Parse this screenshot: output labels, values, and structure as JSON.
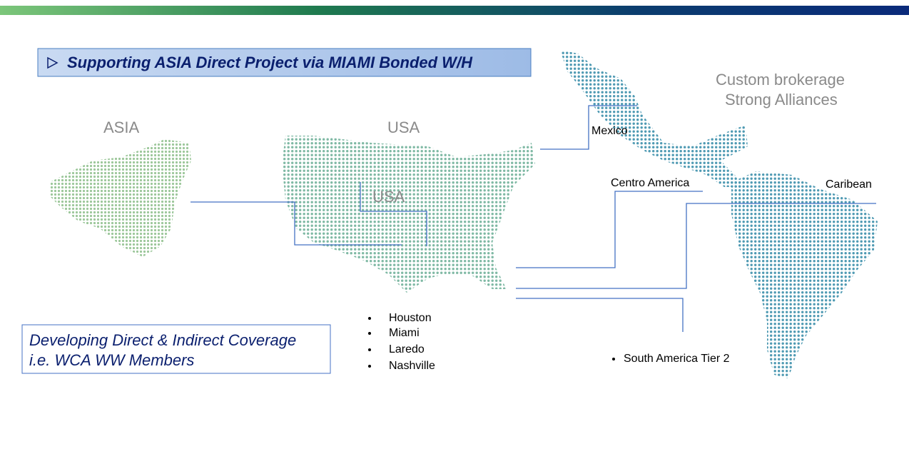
{
  "banner": {
    "title": "Supporting ASIA Direct Project via MIAMI Bonded W/H"
  },
  "regions": {
    "asia": "ASIA",
    "usa": "USA",
    "usa_inner": "USA"
  },
  "alliances": [
    "Custom brokerage",
    "Strong Alliances"
  ],
  "labels": {
    "mexico": "Mexico",
    "centro": "Centro America",
    "caribean": "Caribean",
    "south": "South America Tier 2"
  },
  "usa_cities": [
    "Houston",
    "Miami",
    "Laredo",
    "Nashville"
  ],
  "coverage": [
    "Developing Direct & Indirect Coverage",
    "i.e. WCA WW Members"
  ]
}
